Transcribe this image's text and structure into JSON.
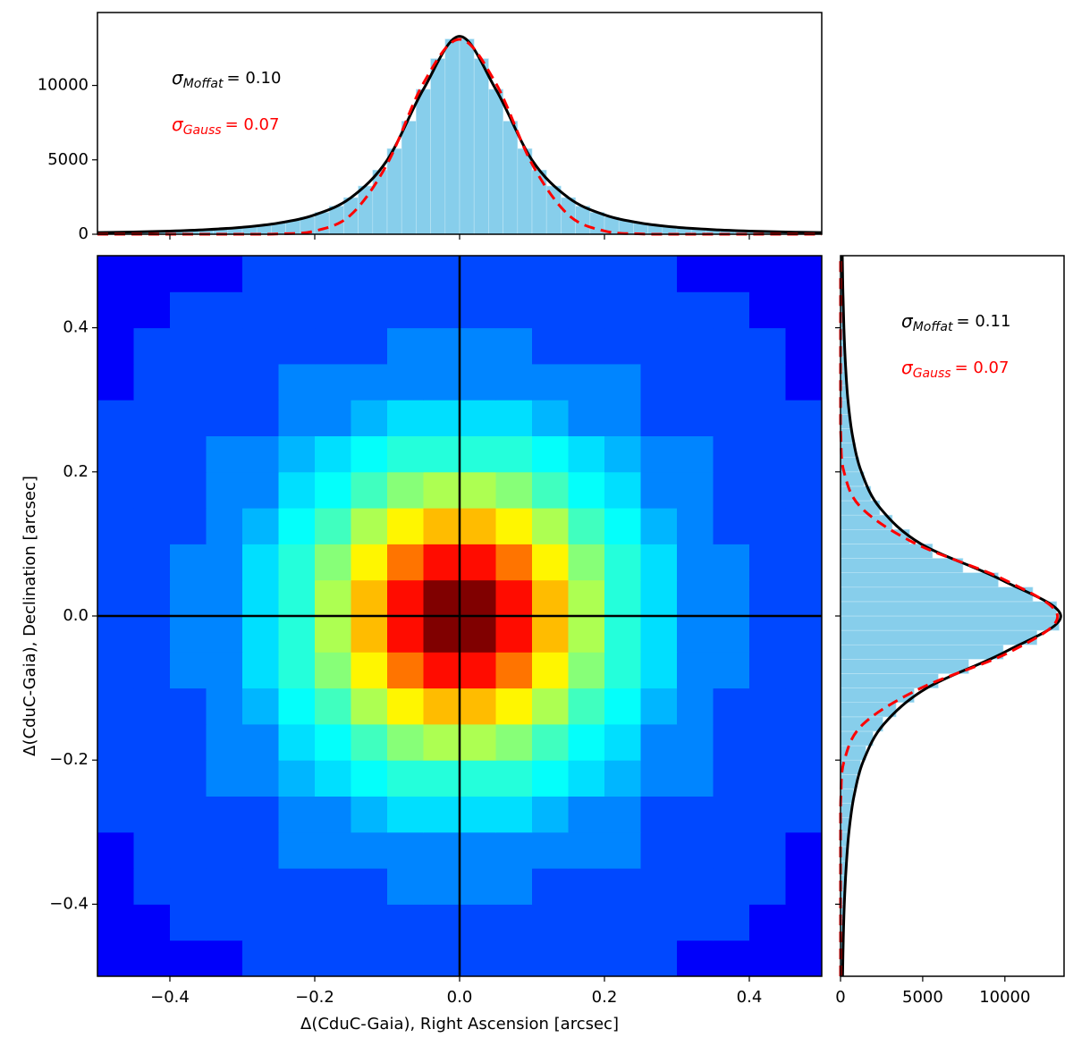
{
  "chart_data": [
    {
      "type": "histogram",
      "orientation": "vertical",
      "bins": [
        -0.5,
        -0.48,
        -0.46,
        -0.44,
        -0.42,
        -0.4,
        -0.38,
        -0.36,
        -0.34,
        -0.32,
        -0.3,
        -0.28,
        -0.26,
        -0.24,
        -0.22,
        -0.2,
        -0.18,
        -0.16,
        -0.14,
        -0.12,
        -0.1,
        -0.08,
        -0.06,
        -0.04,
        -0.02,
        0,
        0.02,
        0.04,
        0.06,
        0.08,
        0.1,
        0.12,
        0.14,
        0.16,
        0.18,
        0.2,
        0.22,
        0.24,
        0.26,
        0.28,
        0.3,
        0.32,
        0.34,
        0.36,
        0.38,
        0.4,
        0.42,
        0.44,
        0.46,
        0.48,
        0.5
      ],
      "counts": [
        120,
        130,
        150,
        170,
        200,
        230,
        260,
        310,
        360,
        430,
        510,
        620,
        750,
        930,
        1160,
        1470,
        1890,
        2460,
        3240,
        4310,
        5750,
        7600,
        9740,
        11800,
        13120,
        13120,
        11800,
        9740,
        7600,
        5750,
        4310,
        3240,
        2460,
        1890,
        1470,
        1160,
        930,
        750,
        620,
        510,
        430,
        360,
        310,
        260,
        230,
        200,
        170,
        150,
        130,
        120
      ],
      "color": "#87ceeb",
      "xlim": [
        -0.5,
        0.5
      ],
      "ylim": [
        0,
        14900
      ],
      "xticks": [
        -0.4,
        -0.2,
        0,
        0.2,
        0.4
      ],
      "xtick_labels": false,
      "yticks": [
        0,
        5000,
        10000
      ],
      "curve_x": [
        -0.5,
        -0.45,
        -0.4,
        -0.35,
        -0.3,
        -0.25,
        -0.2,
        -0.15,
        -0.1,
        -0.05,
        0,
        0.05,
        0.1,
        0.15,
        0.2,
        0.25,
        0.3,
        0.35,
        0.4,
        0.45,
        0.5
      ],
      "curves": [
        {
          "color": "#000000",
          "style": "solid",
          "values": [
            112,
            150,
            212,
            310,
            467,
            753,
            1305,
            2460,
            4980,
            9740,
            13300,
            9740,
            4980,
            2460,
            1305,
            753,
            467,
            310,
            212,
            150,
            112
          ]
        },
        {
          "color": "#ff0000",
          "style": "dashed",
          "values": [
            0,
            0,
            0,
            0,
            1,
            22,
            220,
            1310,
            4720,
            10150,
            13100,
            10150,
            4720,
            1310,
            220,
            22,
            1,
            0,
            0,
            0,
            0
          ]
        }
      ],
      "annotations": [
        {
          "symbol": "σ",
          "subscript": "Moffat",
          "text": "= 0.10",
          "color": "#000000"
        },
        {
          "symbol": "σ",
          "subscript": "Gauss",
          "text": "= 0.07",
          "color": "#ff0000"
        }
      ]
    },
    {
      "type": "heatmap",
      "colormap": "jet",
      "color_scale": "log",
      "x_bins": [
        -0.5,
        -0.45,
        -0.4,
        -0.35,
        -0.3,
        -0.25,
        -0.2,
        -0.15,
        -0.1,
        -0.05,
        0,
        0.05,
        0.1,
        0.15,
        0.2,
        0.25,
        0.3,
        0.35,
        0.4,
        0.45,
        0.5
      ],
      "y_bins": [
        -0.5,
        -0.45,
        -0.4,
        -0.35,
        -0.3,
        -0.25,
        -0.2,
        -0.15,
        -0.1,
        -0.05,
        0,
        0.05,
        0.1,
        0.15,
        0.2,
        0.25,
        0.3,
        0.35,
        0.4,
        0.45,
        0.5
      ],
      "z": [
        [
          3,
          3,
          3,
          3,
          4,
          4,
          4,
          4,
          4,
          4,
          4,
          4,
          4,
          4,
          4,
          4,
          3,
          3,
          3,
          3
        ],
        [
          3,
          3,
          4,
          4,
          4,
          4,
          4,
          4,
          4,
          4,
          4,
          4,
          4,
          4,
          4,
          4,
          4,
          4,
          3,
          3
        ],
        [
          3,
          4,
          4,
          4,
          4,
          4,
          4,
          4,
          5,
          5,
          5,
          5,
          4,
          4,
          4,
          4,
          4,
          4,
          4,
          3
        ],
        [
          3,
          4,
          4,
          4,
          4,
          5,
          5,
          5,
          5,
          5,
          5,
          5,
          5,
          5,
          5,
          4,
          4,
          4,
          4,
          3
        ],
        [
          4,
          4,
          4,
          4,
          4,
          5,
          5,
          6,
          7,
          7,
          7,
          7,
          6,
          5,
          5,
          4,
          4,
          4,
          4,
          4
        ],
        [
          4,
          4,
          4,
          5,
          5,
          6,
          7,
          8,
          9,
          9,
          9,
          9,
          8,
          7,
          6,
          5,
          5,
          4,
          4,
          4
        ],
        [
          4,
          4,
          4,
          5,
          5,
          7,
          8,
          10,
          13,
          15,
          15,
          13,
          10,
          8,
          7,
          5,
          5,
          4,
          4,
          4
        ],
        [
          4,
          4,
          4,
          5,
          6,
          8,
          10,
          15,
          21,
          26,
          26,
          21,
          15,
          10,
          8,
          6,
          5,
          4,
          4,
          4
        ],
        [
          4,
          4,
          5,
          5,
          7,
          9,
          13,
          21,
          34,
          50,
          50,
          34,
          21,
          13,
          9,
          7,
          5,
          5,
          4,
          4
        ],
        [
          4,
          4,
          5,
          5,
          7,
          9,
          15,
          26,
          50,
          84,
          84,
          50,
          26,
          15,
          9,
          7,
          5,
          5,
          4,
          4
        ],
        [
          4,
          4,
          5,
          5,
          7,
          9,
          15,
          26,
          50,
          84,
          84,
          50,
          26,
          15,
          9,
          7,
          5,
          5,
          4,
          4
        ],
        [
          4,
          4,
          5,
          5,
          7,
          9,
          13,
          21,
          34,
          50,
          50,
          34,
          21,
          13,
          9,
          7,
          5,
          5,
          4,
          4
        ],
        [
          4,
          4,
          4,
          5,
          6,
          8,
          10,
          15,
          21,
          26,
          26,
          21,
          15,
          10,
          8,
          6,
          5,
          4,
          4,
          4
        ],
        [
          4,
          4,
          4,
          5,
          5,
          7,
          8,
          10,
          13,
          15,
          15,
          13,
          10,
          8,
          7,
          5,
          5,
          4,
          4,
          4
        ],
        [
          4,
          4,
          4,
          5,
          5,
          6,
          7,
          8,
          9,
          9,
          9,
          9,
          8,
          7,
          6,
          5,
          5,
          4,
          4,
          4
        ],
        [
          4,
          4,
          4,
          4,
          4,
          5,
          5,
          6,
          7,
          7,
          7,
          7,
          6,
          5,
          5,
          4,
          4,
          4,
          4,
          4
        ],
        [
          3,
          4,
          4,
          4,
          4,
          5,
          5,
          5,
          5,
          5,
          5,
          5,
          5,
          5,
          5,
          4,
          4,
          4,
          4,
          3
        ],
        [
          3,
          4,
          4,
          4,
          4,
          4,
          4,
          4,
          5,
          5,
          5,
          5,
          4,
          4,
          4,
          4,
          4,
          4,
          4,
          3
        ],
        [
          3,
          3,
          4,
          4,
          4,
          4,
          4,
          4,
          4,
          4,
          4,
          4,
          4,
          4,
          4,
          4,
          4,
          4,
          3,
          3
        ],
        [
          3,
          3,
          3,
          3,
          4,
          4,
          4,
          4,
          4,
          4,
          4,
          4,
          4,
          4,
          4,
          4,
          3,
          3,
          3,
          3
        ]
      ],
      "xlim": [
        -0.5,
        0.5
      ],
      "ylim": [
        -0.5,
        0.5
      ],
      "xticks": [
        {
          "value": -0.4,
          "label": "−0.4"
        },
        {
          "value": -0.2,
          "label": "−0.2"
        },
        {
          "value": 0,
          "label": "0.0"
        },
        0.2,
        0.4
      ],
      "yticks": [
        {
          "value": -0.4,
          "label": "−0.4"
        },
        {
          "value": -0.2,
          "label": "−0.2"
        },
        {
          "value": 0,
          "label": "0.0"
        },
        0.2,
        0.4
      ],
      "xlabel": "Δ(CduC-Gaia), Right Ascension [arcsec]",
      "ylabel": "Δ(CduC-Gaia), Declination [arcsec]",
      "reference_lines": {
        "x": 0,
        "y": 0
      }
    },
    {
      "type": "histogram",
      "orientation": "horizontal",
      "bins": [
        -0.5,
        -0.48,
        -0.46,
        -0.44,
        -0.42,
        -0.4,
        -0.38,
        -0.36,
        -0.34,
        -0.32,
        -0.3,
        -0.28,
        -0.26,
        -0.24,
        -0.22,
        -0.2,
        -0.18,
        -0.16,
        -0.14,
        -0.12,
        -0.1,
        -0.08,
        -0.06,
        -0.04,
        -0.02,
        0,
        0.02,
        0.04,
        0.06,
        0.08,
        0.1,
        0.12,
        0.14,
        0.16,
        0.18,
        0.2,
        0.22,
        0.24,
        0.26,
        0.28,
        0.3,
        0.32,
        0.34,
        0.36,
        0.38,
        0.4,
        0.42,
        0.44,
        0.46,
        0.48,
        0.5
      ],
      "counts": [
        130,
        140,
        160,
        180,
        210,
        240,
        280,
        330,
        380,
        450,
        540,
        650,
        790,
        980,
        1220,
        1540,
        1980,
        2580,
        3380,
        4480,
        5950,
        7800,
        9900,
        11950,
        13300,
        13150,
        11700,
        9600,
        7450,
        5600,
        4200,
        3150,
        2390,
        1840,
        1430,
        1130,
        900,
        730,
        600,
        500,
        420,
        350,
        300,
        255,
        225,
        195,
        165,
        145,
        125,
        115
      ],
      "color": "#87ceeb",
      "xlim": [
        0,
        13600
      ],
      "ylim": [
        -0.5,
        0.5
      ],
      "xticks": [
        0,
        5000,
        10000
      ],
      "yticks": [
        -0.4,
        -0.2,
        0,
        0.2,
        0.4
      ],
      "ytick_labels": false,
      "curve_x": [
        -0.5,
        -0.45,
        -0.4,
        -0.35,
        -0.3,
        -0.25,
        -0.2,
        -0.15,
        -0.1,
        -0.05,
        0,
        0.05,
        0.1,
        0.15,
        0.2,
        0.25,
        0.3,
        0.35,
        0.4,
        0.45,
        0.5
      ],
      "curves": [
        {
          "color": "#000000",
          "style": "solid",
          "values": [
            125,
            165,
            230,
            340,
            510,
            820,
            1410,
            2640,
            5250,
            10000,
            13400,
            9800,
            4900,
            2400,
            1270,
            730,
            450,
            300,
            205,
            145,
            108
          ]
        },
        {
          "color": "#ff0000",
          "style": "dashed",
          "values": [
            0,
            0,
            0,
            0,
            1,
            24,
            235,
            1380,
            4900,
            10300,
            13200,
            10000,
            4600,
            1270,
            210,
            20,
            1,
            0,
            0,
            0,
            0
          ]
        }
      ],
      "annotations": [
        {
          "symbol": "σ",
          "subscript": "Moffat",
          "text": "= 0.11",
          "color": "#000000"
        },
        {
          "symbol": "σ",
          "subscript": "Gauss",
          "text": "= 0.07",
          "color": "#ff0000"
        }
      ]
    }
  ]
}
